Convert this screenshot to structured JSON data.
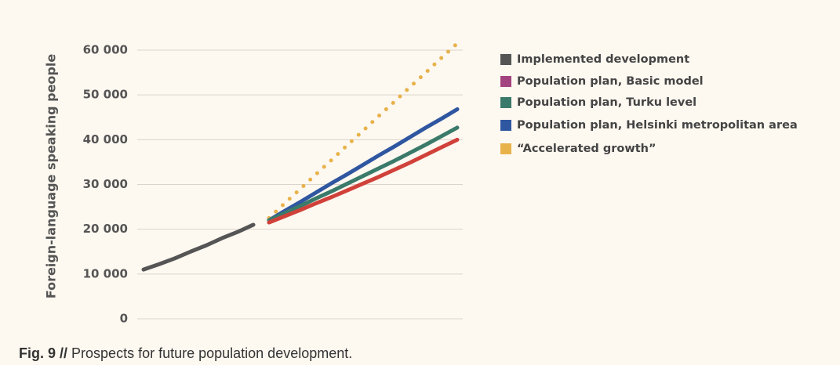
{
  "chart_data": {
    "type": "line",
    "y_label": "Foreign-language speaking people",
    "caption": {
      "bold": "Fig. 9 //",
      "text": "Prospects for future population development."
    },
    "categories": [
      null,
      null,
      null,
      null,
      null,
      null,
      null,
      null,
      null,
      null,
      null,
      null,
      null,
      null,
      null,
      null,
      null,
      null,
      null,
      null,
      null
    ],
    "ylim": [
      0,
      60000
    ],
    "yticks": [
      0,
      {
        "value": 10000,
        "label": "10 000"
      },
      {
        "value": 20000,
        "label": "20 000"
      },
      {
        "value": 30000,
        "label": "30 000"
      },
      {
        "value": 40000,
        "label": "40 000"
      },
      {
        "value": 50000,
        "label": "50 000"
      },
      {
        "value": 60000,
        "label": "60 000"
      }
    ],
    "grid": true,
    "legend": "right",
    "series": [
      {
        "name": "Implemented development",
        "color": "#555555",
        "values": [
          11000,
          12200,
          13500,
          15000,
          16400,
          18000,
          19400,
          21000,
          null,
          null,
          null,
          null,
          null,
          null,
          null,
          null,
          null,
          null,
          null,
          null,
          null
        ]
      },
      {
        "name": "Population plan, Basic model",
        "color": "#a3437f",
        "line_color": "#d0413a",
        "values": [
          null,
          null,
          null,
          null,
          null,
          null,
          null,
          null,
          21500,
          22900,
          24300,
          25800,
          27200,
          28700,
          30200,
          31700,
          33300,
          34900,
          36600,
          38300,
          40000
        ]
      },
      {
        "name": "Population plan, Turku level",
        "color": "#3a7a6a",
        "values": [
          null,
          null,
          null,
          null,
          null,
          null,
          null,
          null,
          22000,
          23600,
          25200,
          26900,
          28500,
          30200,
          31900,
          33600,
          35300,
          37100,
          38900,
          40800,
          42700
        ]
      },
      {
        "name": "Population plan, Helsinki metropolitan area",
        "color": "#2f56a0",
        "values": [
          null,
          null,
          null,
          null,
          null,
          null,
          null,
          null,
          22000,
          24100,
          26100,
          28200,
          30300,
          32300,
          34400,
          36500,
          38500,
          40600,
          42700,
          44700,
          46800
        ]
      },
      {
        "name": "“Accelerated growth”",
        "color": "#e8b24a",
        "dashed": true,
        "values": [
          null,
          null,
          null,
          null,
          null,
          null,
          null,
          null,
          22500,
          25800,
          29000,
          32300,
          35500,
          38800,
          42000,
          45300,
          48500,
          51800,
          55000,
          58300,
          61500
        ]
      }
    ]
  }
}
